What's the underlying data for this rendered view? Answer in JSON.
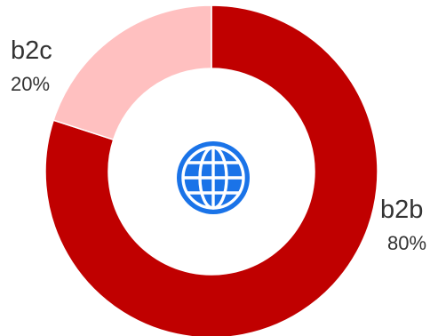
{
  "chart_data": {
    "type": "pie",
    "variant": "donut",
    "title": "",
    "categories": [
      "b2b",
      "b2c"
    ],
    "values": [
      80,
      20
    ],
    "value_labels": [
      "80%",
      "20%"
    ],
    "colors": [
      "#c00000",
      "#ffc0c0"
    ],
    "center_icon": "globe-icon",
    "center_icon_color": "#1a73e8",
    "legend": "none"
  }
}
